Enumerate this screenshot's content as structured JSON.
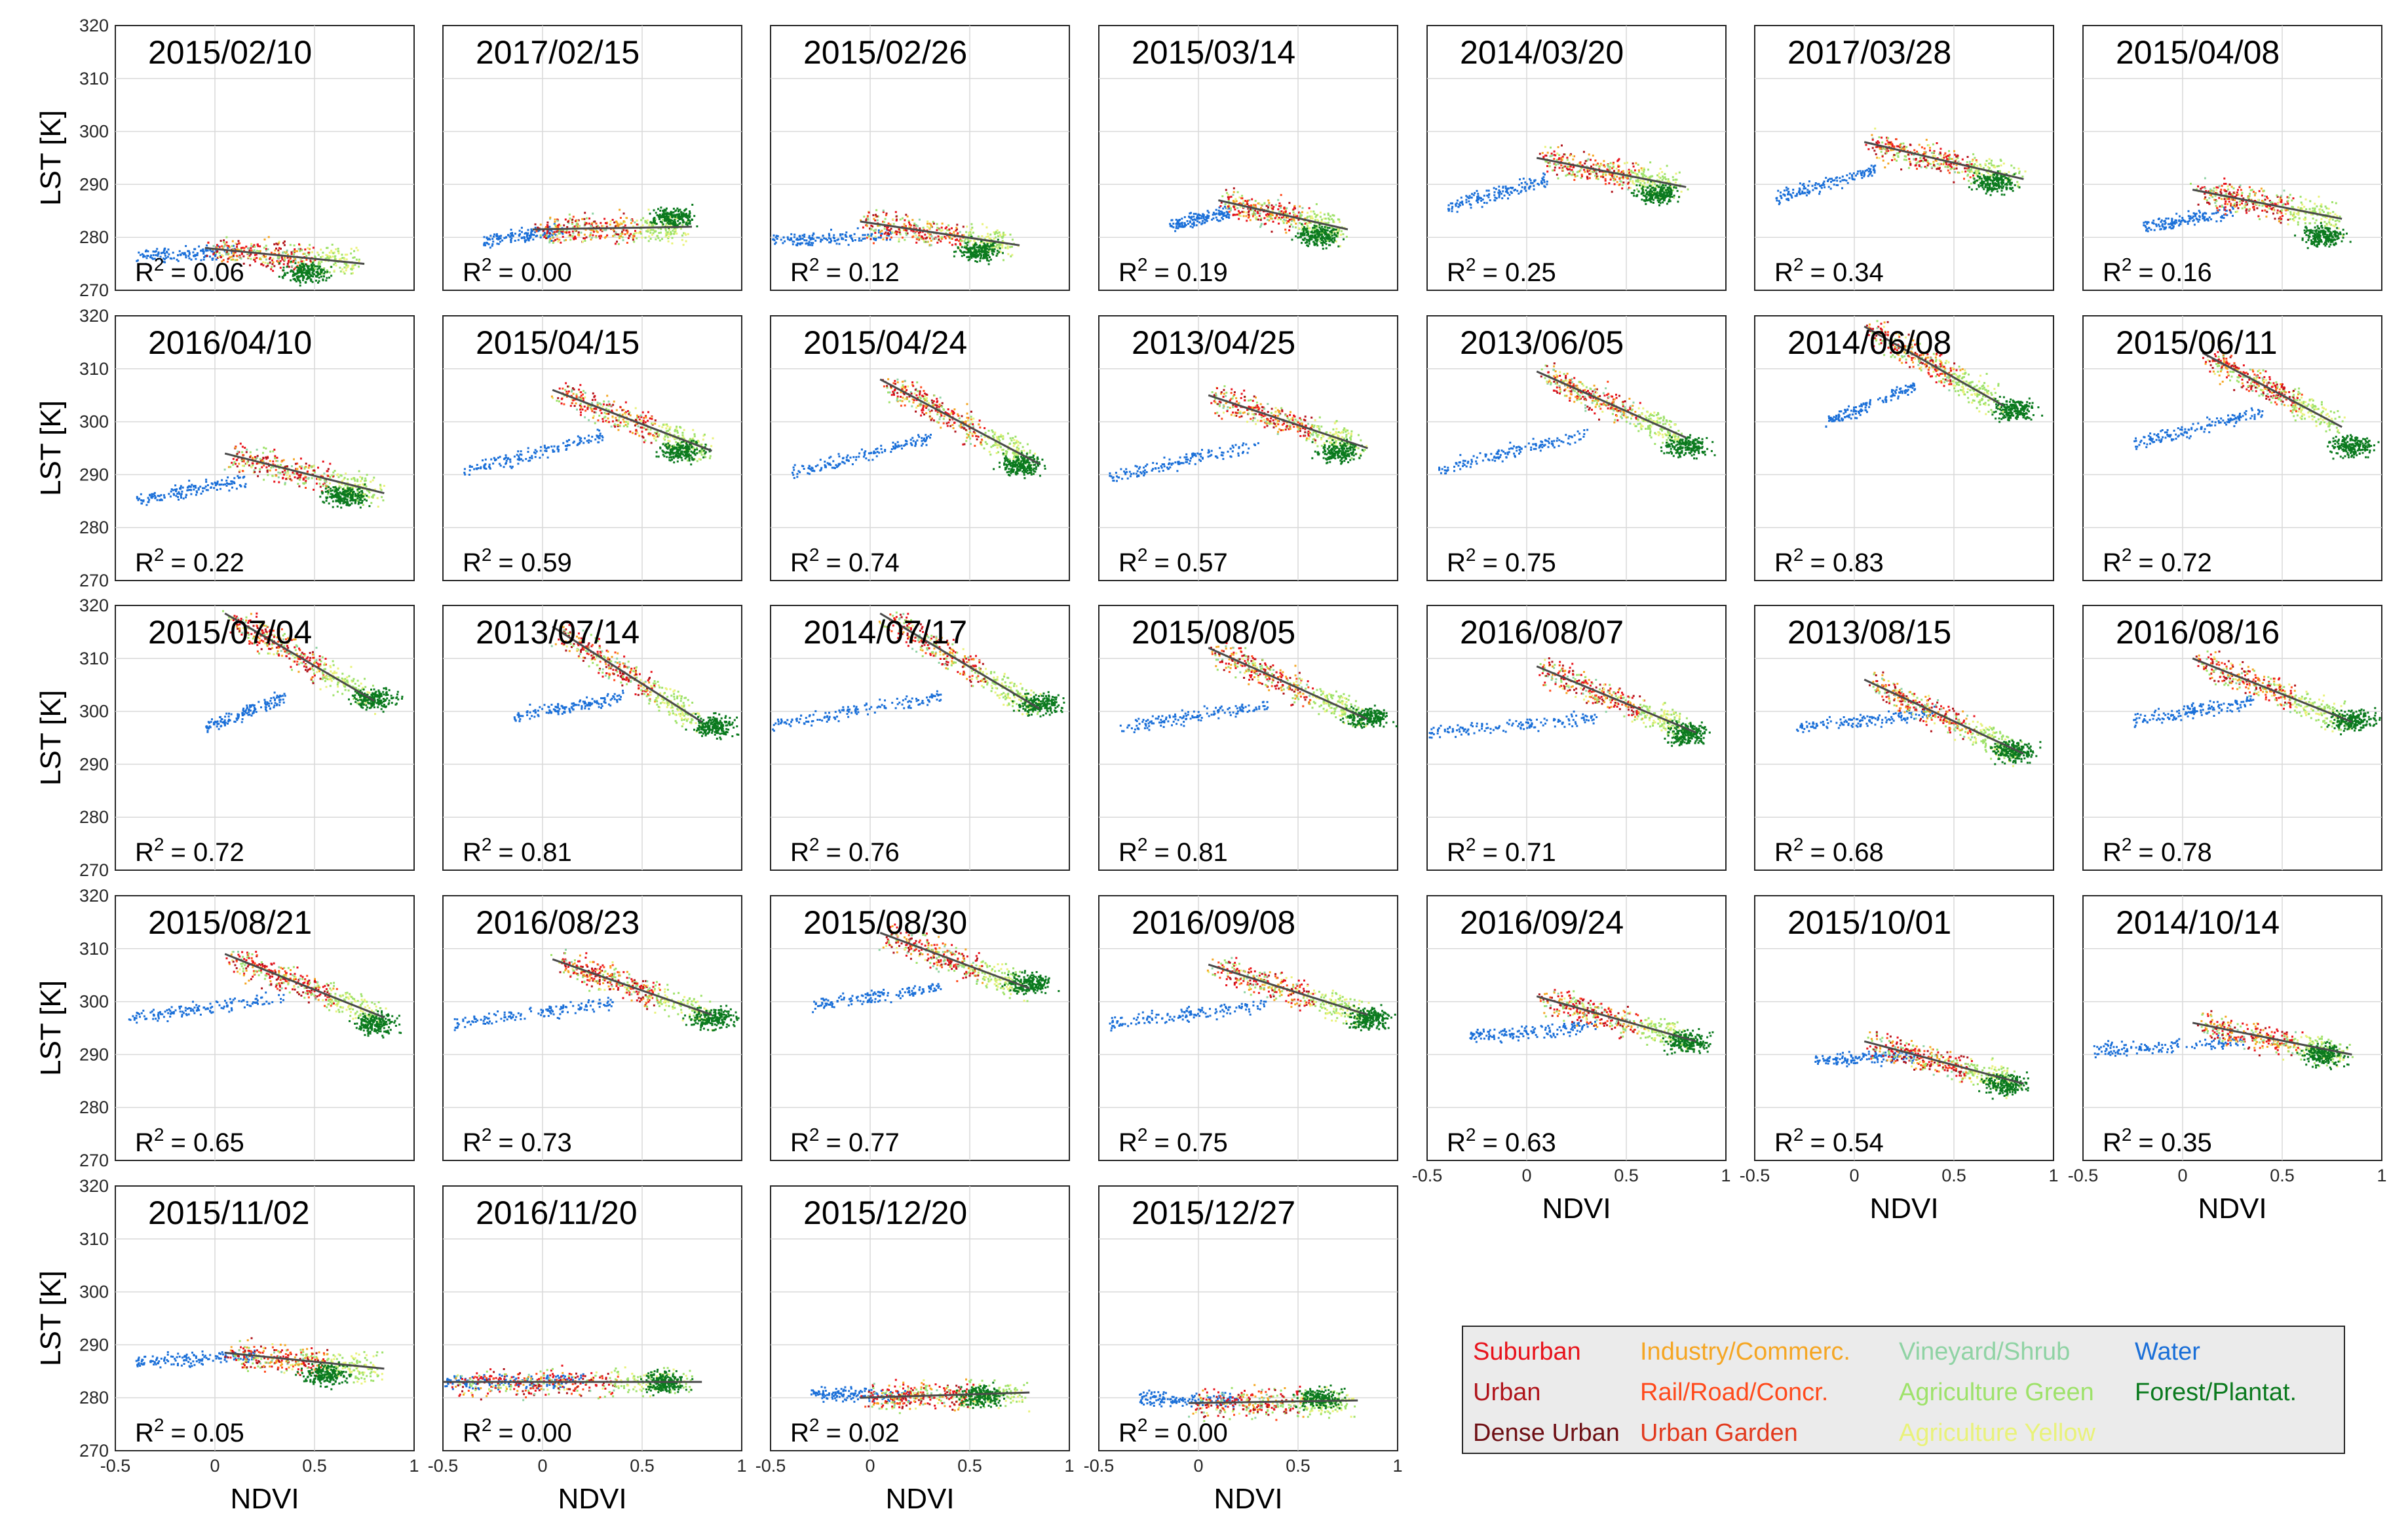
{
  "chart_data": {
    "type": "scatter",
    "layout": "small-multiples",
    "xlabel": "NDVI",
    "ylabel": "LST [K]",
    "xlim": [
      -0.5,
      1
    ],
    "ylim": [
      270,
      320
    ],
    "xticks": [
      -0.5,
      0,
      0.5,
      1
    ],
    "xtick_labels": [
      "-0.5",
      "0",
      "0.5",
      "1"
    ],
    "yticks": [
      270,
      280,
      290,
      300,
      310,
      320
    ],
    "ytick_labels": [
      "270",
      "280",
      "290",
      "300",
      "310",
      "320"
    ],
    "grid": true,
    "r2_prefix": "R",
    "r2_sup": "2",
    "legend": [
      {
        "label": "Suburban",
        "color": "#e8131c"
      },
      {
        "label": "Urban",
        "color": "#b0141b"
      },
      {
        "label": "Dense Urban",
        "color": "#6e0f14"
      },
      {
        "label": "Industry/Commerc.",
        "color": "#f5a623"
      },
      {
        "label": "Rail/Road/Concr.",
        "color": "#ff4a1c"
      },
      {
        "label": "Urban Garden",
        "color": "#e23a1e"
      },
      {
        "label": "Vineyard/Shrub",
        "color": "#8fd3a4"
      },
      {
        "label": "Agriculture Green",
        "color": "#9ee26a"
      },
      {
        "label": "Agriculture Yellow",
        "color": "#e9f27a"
      },
      {
        "label": "Water",
        "color": "#1a6fd8"
      },
      {
        "label": "Forest/Plantat.",
        "color": "#0b7a1e"
      }
    ],
    "panels": [
      {
        "date": "2015/02/10",
        "r2": "= 0.06",
        "fit": [
          [
            -0.05,
            278.0
          ],
          [
            0.75,
            275.0
          ]
        ],
        "water": [
          [
            -0.4,
            276.5
          ],
          [
            0.1,
            277.5
          ]
        ],
        "cluster": [
          0.35,
          277.0
        ],
        "forest": [
          0.35,
          273.5
        ]
      },
      {
        "date": "2017/02/15",
        "r2": "= 0.00",
        "fit": [
          [
            -0.05,
            281.5
          ],
          [
            0.75,
            282.0
          ]
        ],
        "water": [
          [
            -0.3,
            279.5
          ],
          [
            0.1,
            281.5
          ]
        ],
        "cluster": [
          0.3,
          282.5
        ],
        "forest": [
          0.55,
          284.0
        ]
      },
      {
        "date": "2015/02/26",
        "r2": "= 0.12",
        "fit": [
          [
            -0.05,
            283.0
          ],
          [
            0.75,
            278.5
          ]
        ],
        "water": [
          [
            -0.5,
            279.5
          ],
          [
            0.1,
            280.5
          ]
        ],
        "cluster": [
          0.35,
          281.0
        ],
        "forest": [
          0.45,
          277.5
        ]
      },
      {
        "date": "2015/03/14",
        "r2": "= 0.19",
        "fit": [
          [
            0.1,
            287.0
          ],
          [
            0.75,
            281.5
          ]
        ],
        "water": [
          [
            -0.15,
            282.5
          ],
          [
            0.15,
            285.0
          ]
        ],
        "cluster": [
          0.4,
          286.0
        ],
        "forest": [
          0.5,
          280.5
        ]
      },
      {
        "date": "2014/03/20",
        "r2": "= 0.25",
        "fit": [
          [
            0.05,
            295.0
          ],
          [
            0.8,
            289.5
          ]
        ],
        "water": [
          [
            -0.4,
            286.0
          ],
          [
            0.1,
            291.0
          ]
        ],
        "cluster": [
          0.45,
          293.0
        ],
        "forest": [
          0.55,
          288.5
        ]
      },
      {
        "date": "2017/03/28",
        "r2": "= 0.34",
        "fit": [
          [
            0.05,
            298.0
          ],
          [
            0.85,
            291.0
          ]
        ],
        "water": [
          [
            -0.4,
            287.5
          ],
          [
            0.1,
            293.0
          ]
        ],
        "cluster": [
          0.45,
          294.5
        ],
        "forest": [
          0.6,
          290.5
        ]
      },
      {
        "date": "2015/04/08",
        "r2": "= 0.16",
        "fit": [
          [
            0.05,
            289.0
          ],
          [
            0.8,
            283.5
          ]
        ],
        "water": [
          [
            -0.2,
            282.0
          ],
          [
            0.25,
            285.0
          ]
        ],
        "cluster": [
          0.45,
          289.0
        ],
        "forest": [
          0.6,
          280.5
        ]
      },
      {
        "date": "2016/04/10",
        "r2": "= 0.22",
        "fit": [
          [
            0.05,
            294.0
          ],
          [
            0.85,
            286.5
          ]
        ],
        "water": [
          [
            -0.4,
            285.5
          ],
          [
            0.15,
            289.0
          ]
        ],
        "cluster": [
          0.45,
          291.0
        ],
        "forest": [
          0.55,
          286.0
        ]
      },
      {
        "date": "2015/04/15",
        "r2": "= 0.59",
        "fit": [
          [
            0.05,
            306.0
          ],
          [
            0.85,
            294.5
          ]
        ],
        "water": [
          [
            -0.4,
            291.0
          ],
          [
            0.3,
            297.5
          ]
        ],
        "cluster": [
          0.45,
          300.0
        ],
        "forest": [
          0.6,
          294.5
        ]
      },
      {
        "date": "2015/04/24",
        "r2": "= 0.74",
        "fit": [
          [
            0.05,
            308.0
          ],
          [
            0.85,
            292.0
          ]
        ],
        "water": [
          [
            -0.4,
            290.5
          ],
          [
            0.3,
            297.0
          ]
        ],
        "cluster": [
          0.45,
          301.0
        ],
        "forest": [
          0.65,
          292.0
        ]
      },
      {
        "date": "2013/04/25",
        "r2": "= 0.57",
        "fit": [
          [
            0.05,
            305.0
          ],
          [
            0.85,
            295.0
          ]
        ],
        "water": [
          [
            -0.45,
            289.5
          ],
          [
            0.3,
            296.0
          ]
        ],
        "cluster": [
          0.45,
          301.0
        ],
        "forest": [
          0.6,
          294.5
        ]
      },
      {
        "date": "2013/06/05",
        "r2": "= 0.75",
        "fit": [
          [
            0.05,
            309.5
          ],
          [
            0.8,
            297.0
          ]
        ],
        "water": [
          [
            -0.45,
            291.0
          ],
          [
            0.3,
            298.0
          ]
        ],
        "cluster": [
          0.45,
          303.0
        ],
        "forest": [
          0.7,
          295.5
        ]
      },
      {
        "date": "2014/06/08",
        "r2": "= 0.83",
        "fit": [
          [
            0.05,
            318.0
          ],
          [
            0.75,
            303.0
          ]
        ],
        "water": [
          [
            -0.15,
            300.0
          ],
          [
            0.3,
            307.0
          ]
        ],
        "cluster": [
          0.45,
          310.0
        ],
        "forest": [
          0.7,
          302.5
        ]
      },
      {
        "date": "2015/06/11",
        "r2": "= 0.72",
        "fit": [
          [
            0.1,
            313.0
          ],
          [
            0.8,
            299.0
          ]
        ],
        "water": [
          [
            -0.25,
            296.0
          ],
          [
            0.4,
            302.0
          ]
        ],
        "cluster": [
          0.5,
          306.0
        ],
        "forest": [
          0.75,
          295.5
        ]
      },
      {
        "date": "2015/07/04",
        "r2": "= 0.72",
        "fit": [
          [
            0.05,
            318.5
          ],
          [
            0.8,
            302.0
          ]
        ],
        "water": [
          [
            -0.05,
            297.0
          ],
          [
            0.35,
            303.0
          ]
        ],
        "cluster": [
          0.4,
          311.0
        ],
        "forest": [
          0.7,
          302.5
        ]
      },
      {
        "date": "2013/07/14",
        "r2": "= 0.81",
        "fit": [
          [
            0.05,
            316.0
          ],
          [
            0.8,
            298.0
          ]
        ],
        "water": [
          [
            -0.15,
            299.0
          ],
          [
            0.4,
            303.0
          ]
        ],
        "cluster": [
          0.45,
          308.0
        ],
        "forest": [
          0.75,
          297.5
        ]
      },
      {
        "date": "2014/07/17",
        "r2": "= 0.76",
        "fit": [
          [
            0.05,
            318.5
          ],
          [
            0.85,
            300.5
          ]
        ],
        "water": [
          [
            -0.5,
            297.5
          ],
          [
            0.35,
            303.0
          ]
        ],
        "cluster": [
          0.45,
          311.0
        ],
        "forest": [
          0.75,
          301.5
        ]
      },
      {
        "date": "2015/08/05",
        "r2": "= 0.81",
        "fit": [
          [
            0.05,
            312.0
          ],
          [
            0.85,
            298.5
          ]
        ],
        "water": [
          [
            -0.4,
            297.0
          ],
          [
            0.35,
            301.5
          ]
        ],
        "cluster": [
          0.45,
          305.0
        ],
        "forest": [
          0.75,
          299.0
        ]
      },
      {
        "date": "2016/08/07",
        "r2": "= 0.71",
        "fit": [
          [
            0.05,
            308.5
          ],
          [
            0.85,
            296.0
          ]
        ],
        "water": [
          [
            -0.5,
            296.0
          ],
          [
            0.35,
            299.0
          ]
        ],
        "cluster": [
          0.45,
          304.0
        ],
        "forest": [
          0.7,
          296.0
        ]
      },
      {
        "date": "2013/08/15",
        "r2": "= 0.68",
        "fit": [
          [
            0.05,
            306.0
          ],
          [
            0.85,
            292.0
          ]
        ],
        "water": [
          [
            -0.3,
            297.0
          ],
          [
            0.4,
            300.0
          ]
        ],
        "cluster": [
          0.45,
          302.0
        ],
        "forest": [
          0.7,
          292.5
        ]
      },
      {
        "date": "2016/08/16",
        "r2": "= 0.78",
        "fit": [
          [
            0.05,
            310.0
          ],
          [
            0.85,
            298.0
          ]
        ],
        "water": [
          [
            -0.25,
            298.5
          ],
          [
            0.35,
            302.0
          ]
        ],
        "cluster": [
          0.45,
          306.0
        ],
        "forest": [
          0.75,
          298.5
        ]
      },
      {
        "date": "2015/08/21",
        "r2": "= 0.65",
        "fit": [
          [
            0.05,
            309.0
          ],
          [
            0.85,
            297.0
          ]
        ],
        "water": [
          [
            -0.45,
            297.0
          ],
          [
            0.35,
            301.0
          ]
        ],
        "cluster": [
          0.45,
          304.0
        ],
        "forest": [
          0.7,
          296.0
        ]
      },
      {
        "date": "2016/08/23",
        "r2": "= 0.73",
        "fit": [
          [
            0.05,
            308.0
          ],
          [
            0.85,
            297.5
          ]
        ],
        "water": [
          [
            -0.45,
            296.0
          ],
          [
            0.35,
            300.0
          ]
        ],
        "cluster": [
          0.45,
          304.0
        ],
        "forest": [
          0.75,
          297.0
        ]
      },
      {
        "date": "2015/08/30",
        "r2": "= 0.77",
        "fit": [
          [
            0.05,
            313.0
          ],
          [
            0.8,
            302.5
          ]
        ],
        "water": [
          [
            -0.3,
            299.5
          ],
          [
            0.35,
            303.0
          ]
        ],
        "cluster": [
          0.45,
          309.0
        ],
        "forest": [
          0.7,
          303.5
        ]
      },
      {
        "date": "2016/09/08",
        "r2": "= 0.75",
        "fit": [
          [
            0.05,
            307.0
          ],
          [
            0.85,
            297.5
          ]
        ],
        "water": [
          [
            -0.45,
            296.0
          ],
          [
            0.35,
            299.5
          ]
        ],
        "cluster": [
          0.45,
          303.0
        ],
        "forest": [
          0.75,
          297.0
        ]
      },
      {
        "date": "2016/09/24",
        "r2": "= 0.63",
        "fit": [
          [
            0.05,
            301.0
          ],
          [
            0.85,
            292.5
          ]
        ],
        "water": [
          [
            -0.3,
            293.5
          ],
          [
            0.35,
            295.5
          ]
        ],
        "cluster": [
          0.45,
          298.0
        ],
        "forest": [
          0.7,
          292.5
        ]
      },
      {
        "date": "2015/10/01",
        "r2": "= 0.54",
        "fit": [
          [
            0.05,
            292.5
          ],
          [
            0.85,
            284.5
          ]
        ],
        "water": [
          [
            -0.2,
            289.0
          ],
          [
            0.3,
            290.0
          ]
        ],
        "cluster": [
          0.4,
          290.0
        ],
        "forest": [
          0.65,
          284.5
        ]
      },
      {
        "date": "2014/10/14",
        "r2": "= 0.35",
        "fit": [
          [
            0.05,
            296.0
          ],
          [
            0.85,
            290.0
          ]
        ],
        "water": [
          [
            -0.45,
            291.0
          ],
          [
            0.3,
            292.5
          ]
        ],
        "cluster": [
          0.4,
          294.0
        ],
        "forest": [
          0.6,
          290.0
        ]
      },
      {
        "date": "2015/11/02",
        "r2": "= 0.05",
        "fit": [
          [
            0.05,
            288.5
          ],
          [
            0.85,
            285.5
          ]
        ],
        "water": [
          [
            -0.4,
            287.0
          ],
          [
            0.2,
            288.0
          ]
        ],
        "cluster": [
          0.35,
          287.5
        ],
        "forest": [
          0.45,
          284.5
        ]
      },
      {
        "date": "2016/11/20",
        "r2": "= 0.00",
        "fit": [
          [
            -0.5,
            283.0
          ],
          [
            0.8,
            283.0
          ]
        ],
        "water": [
          [
            -0.5,
            283.0
          ],
          [
            0.2,
            283.5
          ]
        ],
        "cluster": [
          0.35,
          283.0
        ],
        "forest": [
          0.5,
          283.0
        ]
      },
      {
        "date": "2015/12/20",
        "r2": "= 0.02",
        "fit": [
          [
            -0.05,
            280.0
          ],
          [
            0.8,
            281.0
          ]
        ],
        "water": [
          [
            -0.3,
            281.0
          ],
          [
            0.2,
            280.5
          ]
        ],
        "cluster": [
          0.35,
          280.0
        ],
        "forest": [
          0.45,
          280.5
        ]
      },
      {
        "date": "2015/12/27",
        "r2": "= 0.00",
        "fit": [
          [
            -0.05,
            279.0
          ],
          [
            0.8,
            279.5
          ]
        ],
        "water": [
          [
            -0.3,
            280.0
          ],
          [
            0.2,
            279.5
          ]
        ],
        "cluster": [
          0.35,
          279.0
        ],
        "forest": [
          0.5,
          280.0
        ]
      }
    ]
  }
}
